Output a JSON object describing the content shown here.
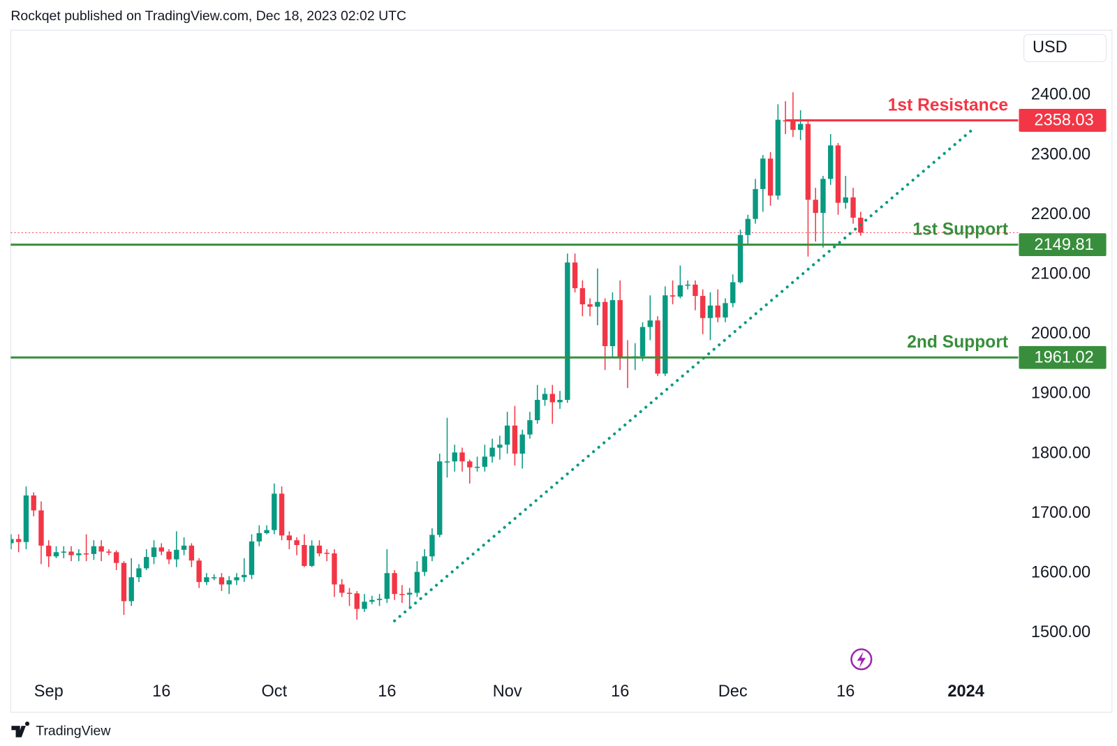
{
  "header": {
    "text": "Rockqet published on TradingView.com, Dec 18, 2023 02:02 UTC"
  },
  "footer": {
    "logo": "TradingView"
  },
  "chart_data": {
    "type": "candlestick",
    "currency": "USD",
    "x": [
      "2023-08-27",
      "2023-08-28",
      "2023-08-29",
      "2023-08-30",
      "2023-08-31",
      "2023-09-01",
      "2023-09-02",
      "2023-09-03",
      "2023-09-04",
      "2023-09-05",
      "2023-09-06",
      "2023-09-07",
      "2023-09-08",
      "2023-09-09",
      "2023-09-10",
      "2023-09-11",
      "2023-09-12",
      "2023-09-13",
      "2023-09-14",
      "2023-09-15",
      "2023-09-16",
      "2023-09-17",
      "2023-09-18",
      "2023-09-19",
      "2023-09-20",
      "2023-09-21",
      "2023-09-22",
      "2023-09-23",
      "2023-09-24",
      "2023-09-25",
      "2023-09-26",
      "2023-09-27",
      "2023-09-28",
      "2023-09-29",
      "2023-09-30",
      "2023-10-01",
      "2023-10-02",
      "2023-10-03",
      "2023-10-04",
      "2023-10-05",
      "2023-10-06",
      "2023-10-07",
      "2023-10-08",
      "2023-10-09",
      "2023-10-10",
      "2023-10-11",
      "2023-10-12",
      "2023-10-13",
      "2023-10-14",
      "2023-10-15",
      "2023-10-16",
      "2023-10-17",
      "2023-10-18",
      "2023-10-19",
      "2023-10-20",
      "2023-10-21",
      "2023-10-22",
      "2023-10-23",
      "2023-10-24",
      "2023-10-25",
      "2023-10-26",
      "2023-10-27",
      "2023-10-28",
      "2023-10-29",
      "2023-10-30",
      "2023-10-31",
      "2023-11-01",
      "2023-11-02",
      "2023-11-03",
      "2023-11-04",
      "2023-11-05",
      "2023-11-06",
      "2023-11-07",
      "2023-11-08",
      "2023-11-09",
      "2023-11-10",
      "2023-11-11",
      "2023-11-12",
      "2023-11-13",
      "2023-11-14",
      "2023-11-15",
      "2023-11-16",
      "2023-11-17",
      "2023-11-18",
      "2023-11-19",
      "2023-11-20",
      "2023-11-21",
      "2023-11-22",
      "2023-11-23",
      "2023-11-24",
      "2023-11-25",
      "2023-11-26",
      "2023-11-27",
      "2023-11-28",
      "2023-11-29",
      "2023-11-30",
      "2023-12-01",
      "2023-12-02",
      "2023-12-03",
      "2023-12-04",
      "2023-12-05",
      "2023-12-06",
      "2023-12-07",
      "2023-12-08",
      "2023-12-09",
      "2023-12-10",
      "2023-12-11",
      "2023-12-12",
      "2023-12-13",
      "2023-12-14",
      "2023-12-15",
      "2023-12-16",
      "2023-12-17",
      "2023-12-18"
    ],
    "open": [
      1650,
      1657,
      1652,
      1730,
      1705,
      1646,
      1628,
      1635,
      1636,
      1630,
      1633,
      1632,
      1645,
      1636,
      1635,
      1617,
      1553,
      1593,
      1608,
      1627,
      1643,
      1636,
      1623,
      1639,
      1646,
      1621,
      1585,
      1592,
      1593,
      1581,
      1588,
      1593,
      1597,
      1653,
      1667,
      1672,
      1733,
      1663,
      1655,
      1647,
      1612,
      1646,
      1634,
      1633,
      1581,
      1567,
      1566,
      1540,
      1552,
      1555,
      1557,
      1600,
      1565,
      1564,
      1567,
      1602,
      1628,
      1664,
      1786,
      1787,
      1802,
      1787,
      1777,
      1778,
      1795,
      1810,
      1815,
      1847,
      1800,
      1832,
      1856,
      1890,
      1900,
      1886,
      1890,
      2120,
      2077,
      2050,
      2046,
      2054,
      1980,
      2057,
      1962,
      1960,
      1963,
      2012,
      2023,
      1934,
      2065,
      2063,
      2082,
      2083,
      2064,
      2027,
      2048,
      2028,
      2052,
      2087,
      2166,
      2193,
      2243,
      2294,
      2232,
      2358,
      2357,
      2342,
      2352,
      2225,
      2203,
      2260,
      2316,
      2220,
      2229,
      2195
    ],
    "high": [
      1665,
      1665,
      1745,
      1735,
      1720,
      1655,
      1645,
      1645,
      1645,
      1640,
      1665,
      1655,
      1655,
      1640,
      1638,
      1620,
      1625,
      1615,
      1640,
      1655,
      1650,
      1640,
      1670,
      1660,
      1650,
      1625,
      1600,
      1598,
      1600,
      1595,
      1600,
      1625,
      1665,
      1680,
      1680,
      1750,
      1745,
      1670,
      1660,
      1665,
      1655,
      1655,
      1640,
      1640,
      1590,
      1575,
      1570,
      1565,
      1562,
      1565,
      1640,
      1605,
      1580,
      1575,
      1620,
      1640,
      1675,
      1800,
      1860,
      1815,
      1810,
      1790,
      1795,
      1815,
      1825,
      1830,
      1870,
      1880,
      1840,
      1870,
      1915,
      1910,
      1915,
      1905,
      2135,
      2135,
      2090,
      2060,
      2110,
      2060,
      2070,
      2090,
      1990,
      1985,
      2020,
      2065,
      2030,
      2080,
      2090,
      2115,
      2090,
      2090,
      2075,
      2070,
      2075,
      2060,
      2100,
      2175,
      2200,
      2260,
      2300,
      2305,
      2385,
      2390,
      2405,
      2375,
      2360,
      2245,
      2265,
      2335,
      2320,
      2265,
      2245,
      2205
    ],
    "low": [
      1640,
      1635,
      1640,
      1695,
      1615,
      1610,
      1625,
      1625,
      1620,
      1620,
      1620,
      1622,
      1620,
      1630,
      1605,
      1530,
      1545,
      1585,
      1605,
      1615,
      1630,
      1615,
      1610,
      1630,
      1610,
      1575,
      1580,
      1588,
      1570,
      1565,
      1580,
      1585,
      1590,
      1645,
      1665,
      1665,
      1655,
      1640,
      1630,
      1610,
      1610,
      1628,
      1620,
      1560,
      1560,
      1545,
      1522,
      1535,
      1548,
      1545,
      1550,
      1555,
      1550,
      1540,
      1560,
      1595,
      1620,
      1660,
      1760,
      1770,
      1770,
      1750,
      1770,
      1770,
      1785,
      1790,
      1800,
      1780,
      1775,
      1825,
      1850,
      1880,
      1850,
      1875,
      1885,
      2070,
      2030,
      2030,
      2015,
      1940,
      1960,
      1940,
      1910,
      1940,
      1955,
      1990,
      1930,
      1930,
      2050,
      2060,
      2075,
      2040,
      2000,
      1990,
      2020,
      2020,
      2045,
      2085,
      2150,
      2185,
      2205,
      2215,
      2225,
      2335,
      2330,
      2325,
      2130,
      2155,
      2145,
      2250,
      2200,
      2210,
      2185,
      2165
    ],
    "close": [
      1657,
      1652,
      1730,
      1705,
      1646,
      1628,
      1635,
      1636,
      1630,
      1633,
      1632,
      1645,
      1636,
      1635,
      1617,
      1553,
      1593,
      1608,
      1627,
      1643,
      1636,
      1623,
      1639,
      1646,
      1621,
      1585,
      1593,
      1593,
      1581,
      1588,
      1593,
      1597,
      1653,
      1667,
      1672,
      1733,
      1663,
      1655,
      1647,
      1612,
      1646,
      1633,
      1633,
      1581,
      1567,
      1566,
      1540,
      1552,
      1555,
      1557,
      1600,
      1565,
      1564,
      1567,
      1602,
      1628,
      1664,
      1787,
      1787,
      1802,
      1787,
      1777,
      1778,
      1795,
      1810,
      1815,
      1847,
      1800,
      1832,
      1856,
      1890,
      1900,
      1886,
      1890,
      2120,
      2077,
      2050,
      2046,
      2054,
      1980,
      2057,
      1962,
      1960,
      1963,
      2012,
      2023,
      1934,
      2065,
      2063,
      2082,
      2083,
      2064,
      2027,
      2048,
      2028,
      2052,
      2087,
      2166,
      2193,
      2243,
      2294,
      2232,
      2359,
      2357,
      2342,
      2352,
      2225,
      2203,
      2260,
      2316,
      2220,
      2229,
      2195,
      2170
    ],
    "up_color": "#089981",
    "down_color": "#f23645",
    "xlim": [
      "2023-08-27",
      "2024-01-08"
    ],
    "xticks": [
      {
        "value": "2023-09-01",
        "label": "Sep"
      },
      {
        "value": "2023-09-16",
        "label": "16"
      },
      {
        "value": "2023-10-01",
        "label": "Oct"
      },
      {
        "value": "2023-10-16",
        "label": "16"
      },
      {
        "value": "2023-11-01",
        "label": "Nov"
      },
      {
        "value": "2023-11-16",
        "label": "16"
      },
      {
        "value": "2023-12-01",
        "label": "Dec"
      },
      {
        "value": "2023-12-16",
        "label": "16"
      },
      {
        "value": "2024-01-01",
        "label": "2024"
      }
    ],
    "ylim": [
      1367,
      2509
    ],
    "yticks": [
      {
        "value": 1500,
        "label": "1500.00"
      },
      {
        "value": 1600,
        "label": "1600.00"
      },
      {
        "value": 1700,
        "label": "1700.00"
      },
      {
        "value": 1800,
        "label": "1800.00"
      },
      {
        "value": 1900,
        "label": "1900.00"
      },
      {
        "value": 2000,
        "label": "2000.00"
      },
      {
        "value": 2100,
        "label": "2100.00"
      },
      {
        "value": 2200,
        "label": "2200.00"
      },
      {
        "value": 2300,
        "label": "2300.00"
      },
      {
        "value": 2400,
        "label": "2400.00"
      }
    ],
    "levels": [
      {
        "name": "1st Resistance",
        "value": 2358.03,
        "color": "#f23645",
        "from": "2023-12-08"
      },
      {
        "name": "1st Support",
        "value": 2149.81,
        "color": "#388e3c"
      },
      {
        "name": "2nd Support",
        "value": 1961.02,
        "color": "#388e3c"
      }
    ],
    "trendline": {
      "x": [
        "2023-10-17",
        "2024-01-02"
      ],
      "y": [
        1520,
        2344
      ],
      "color": "#089981"
    }
  }
}
